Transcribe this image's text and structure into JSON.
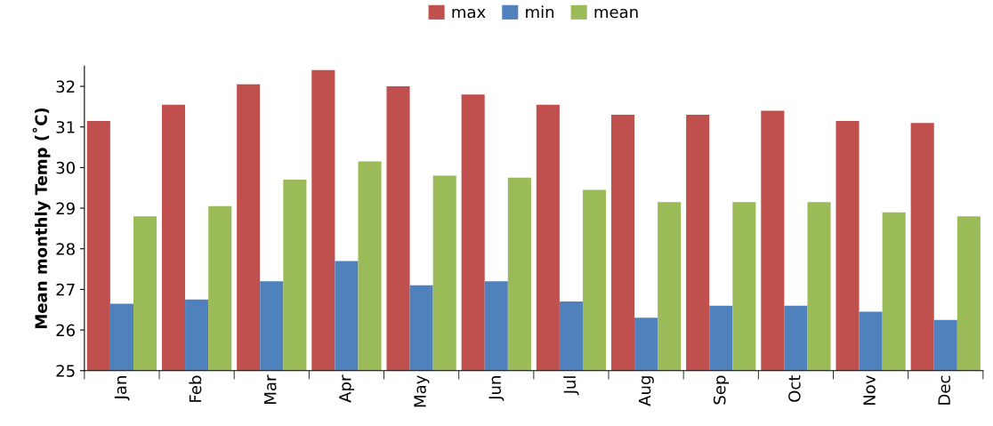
{
  "chart_data": {
    "type": "bar",
    "ylabel": "Mean monthly Temp (˚C)",
    "categories": [
      "Jan",
      "Feb",
      "Mar",
      "Apr",
      "May",
      "Jun",
      "Jul",
      "Aug",
      "Sep",
      "Oct",
      "Nov",
      "Dec"
    ],
    "series": [
      {
        "name": "max",
        "color": "#c0504d",
        "values": [
          31.15,
          31.55,
          32.05,
          32.4,
          32.0,
          31.8,
          31.55,
          31.3,
          31.3,
          31.4,
          31.15,
          31.1
        ]
      },
      {
        "name": "min",
        "color": "#4f81bd",
        "values": [
          26.65,
          26.75,
          27.2,
          27.7,
          27.1,
          27.2,
          26.7,
          26.3,
          26.6,
          26.6,
          26.45,
          26.25
        ]
      },
      {
        "name": "mean",
        "color": "#9bbb59",
        "values": [
          28.8,
          29.05,
          29.7,
          30.15,
          29.8,
          29.75,
          29.45,
          29.15,
          29.15,
          29.15,
          28.9,
          28.8
        ]
      }
    ],
    "ylim": [
      25,
      32.5
    ],
    "yticks": [
      25,
      26,
      27,
      28,
      29,
      30,
      31,
      32
    ],
    "grid": false,
    "legend": "top"
  }
}
